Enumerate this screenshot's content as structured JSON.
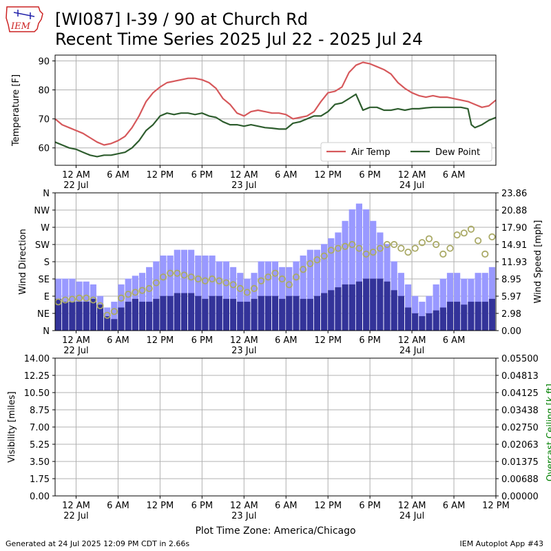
{
  "page": {
    "title_line1": "[WI087] I-39 / 90 at Church Rd",
    "title_line2": "Recent Time Series 2025 Jul 22 - 2025 Jul 24",
    "logo_text": "IEM",
    "timezone_label": "Plot Time Zone: America/Chicago",
    "footer_left": "Generated at 24 Jul 2025 12:09 PM CDT in 2.66s",
    "footer_right": "IEM Autoplot App #43"
  },
  "colors": {
    "air_temp": "#d6585b",
    "dew_point": "#2e5d2e",
    "wind_gust": "#9999ff",
    "wind_speed": "#333399",
    "wind_dir": "#aaaa66",
    "ceiling_axis": "#008000",
    "grid": "#b0b0b0"
  },
  "chart_data": [
    {
      "type": "line",
      "panel": "temperature",
      "ylabel": "Temperature [F]",
      "ylim": [
        54,
        92
      ],
      "yticks": [
        60,
        70,
        80,
        90
      ],
      "xrange": [
        "2025-07-21 21:00",
        "2025-07-24 12:00"
      ],
      "x_tick_labels": [
        "12 AM",
        "6 AM",
        "12 PM",
        "6 PM",
        "12 AM",
        "6 AM",
        "12 PM",
        "6 PM",
        "12 AM",
        "6 AM"
      ],
      "date_labels": [
        "22 Jul",
        "23 Jul",
        "24 Jul"
      ],
      "grid": true,
      "legend_position": "lower right",
      "series": [
        {
          "name": "Air Temp",
          "points": [
            [
              "2025-07-21 21:00",
              70
            ],
            [
              "2025-07-21 22:00",
              68
            ],
            [
              "2025-07-21 23:00",
              67
            ],
            [
              "2025-07-22 00:00",
              66
            ],
            [
              "2025-07-22 01:00",
              65
            ],
            [
              "2025-07-22 02:00",
              63.5
            ],
            [
              "2025-07-22 03:00",
              62
            ],
            [
              "2025-07-22 04:00",
              61
            ],
            [
              "2025-07-22 05:00",
              61.5
            ],
            [
              "2025-07-22 06:00",
              62.5
            ],
            [
              "2025-07-22 07:00",
              64
            ],
            [
              "2025-07-22 08:00",
              67
            ],
            [
              "2025-07-22 09:00",
              71
            ],
            [
              "2025-07-22 10:00",
              76
            ],
            [
              "2025-07-22 11:00",
              79
            ],
            [
              "2025-07-22 12:00",
              81
            ],
            [
              "2025-07-22 13:00",
              82.5
            ],
            [
              "2025-07-22 14:00",
              83
            ],
            [
              "2025-07-22 15:00",
              83.5
            ],
            [
              "2025-07-22 16:00",
              84
            ],
            [
              "2025-07-22 17:00",
              84
            ],
            [
              "2025-07-22 18:00",
              83.5
            ],
            [
              "2025-07-22 19:00",
              82.5
            ],
            [
              "2025-07-22 20:00",
              80.5
            ],
            [
              "2025-07-22 21:00",
              77
            ],
            [
              "2025-07-22 22:00",
              75
            ],
            [
              "2025-07-22 23:00",
              72
            ],
            [
              "2025-07-23 00:00",
              71
            ],
            [
              "2025-07-23 01:00",
              72.5
            ],
            [
              "2025-07-23 02:00",
              73
            ],
            [
              "2025-07-23 03:00",
              72.5
            ],
            [
              "2025-07-23 04:00",
              72
            ],
            [
              "2025-07-23 05:00",
              72
            ],
            [
              "2025-07-23 06:00",
              71.5
            ],
            [
              "2025-07-23 07:00",
              70
            ],
            [
              "2025-07-23 08:00",
              70.5
            ],
            [
              "2025-07-23 09:00",
              71
            ],
            [
              "2025-07-23 10:00",
              72.5
            ],
            [
              "2025-07-23 11:00",
              76
            ],
            [
              "2025-07-23 12:00",
              79
            ],
            [
              "2025-07-23 13:00",
              79.5
            ],
            [
              "2025-07-23 14:00",
              81
            ],
            [
              "2025-07-23 15:00",
              86
            ],
            [
              "2025-07-23 16:00",
              88.5
            ],
            [
              "2025-07-23 17:00",
              89.5
            ],
            [
              "2025-07-23 18:00",
              89
            ],
            [
              "2025-07-23 19:00",
              88
            ],
            [
              "2025-07-23 20:00",
              87
            ],
            [
              "2025-07-23 21:00",
              85.5
            ],
            [
              "2025-07-23 22:00",
              82.5
            ],
            [
              "2025-07-23 23:00",
              80.5
            ],
            [
              "2025-07-24 00:00",
              79
            ],
            [
              "2025-07-24 01:00",
              78
            ],
            [
              "2025-07-24 02:00",
              77.5
            ],
            [
              "2025-07-24 03:00",
              78
            ],
            [
              "2025-07-24 04:00",
              77.5
            ],
            [
              "2025-07-24 05:00",
              77.5
            ],
            [
              "2025-07-24 06:00",
              77
            ],
            [
              "2025-07-24 07:00",
              76.5
            ],
            [
              "2025-07-24 08:00",
              76
            ],
            [
              "2025-07-24 09:00",
              75
            ],
            [
              "2025-07-24 10:00",
              74
            ],
            [
              "2025-07-24 11:00",
              74.5
            ],
            [
              "2025-07-24 12:00",
              76.5
            ]
          ]
        },
        {
          "name": "Dew Point",
          "points": [
            [
              "2025-07-21 21:00",
              62
            ],
            [
              "2025-07-21 22:00",
              61
            ],
            [
              "2025-07-21 23:00",
              60
            ],
            [
              "2025-07-22 00:00",
              59.5
            ],
            [
              "2025-07-22 01:00",
              58.5
            ],
            [
              "2025-07-22 02:00",
              57.5
            ],
            [
              "2025-07-22 03:00",
              57
            ],
            [
              "2025-07-22 04:00",
              57.5
            ],
            [
              "2025-07-22 05:00",
              57.5
            ],
            [
              "2025-07-22 06:00",
              58
            ],
            [
              "2025-07-22 07:00",
              58.5
            ],
            [
              "2025-07-22 08:00",
              60
            ],
            [
              "2025-07-22 09:00",
              62.5
            ],
            [
              "2025-07-22 10:00",
              66
            ],
            [
              "2025-07-22 11:00",
              68
            ],
            [
              "2025-07-22 12:00",
              71
            ],
            [
              "2025-07-22 13:00",
              72
            ],
            [
              "2025-07-22 14:00",
              71.5
            ],
            [
              "2025-07-22 15:00",
              72
            ],
            [
              "2025-07-22 16:00",
              72
            ],
            [
              "2025-07-22 17:00",
              71.5
            ],
            [
              "2025-07-22 18:00",
              72
            ],
            [
              "2025-07-22 19:00",
              71
            ],
            [
              "2025-07-22 20:00",
              70.5
            ],
            [
              "2025-07-22 21:00",
              69
            ],
            [
              "2025-07-22 22:00",
              68
            ],
            [
              "2025-07-22 23:00",
              68
            ],
            [
              "2025-07-23 00:00",
              67.5
            ],
            [
              "2025-07-23 01:00",
              68
            ],
            [
              "2025-07-23 02:00",
              67.5
            ],
            [
              "2025-07-23 03:00",
              67
            ],
            [
              "2025-07-23 04:00",
              66.8
            ],
            [
              "2025-07-23 05:00",
              66.5
            ],
            [
              "2025-07-23 06:00",
              66.5
            ],
            [
              "2025-07-23 07:00",
              68.5
            ],
            [
              "2025-07-23 08:00",
              69
            ],
            [
              "2025-07-23 09:00",
              70
            ],
            [
              "2025-07-23 10:00",
              71
            ],
            [
              "2025-07-23 11:00",
              71
            ],
            [
              "2025-07-23 12:00",
              72.5
            ],
            [
              "2025-07-23 13:00",
              75
            ],
            [
              "2025-07-23 14:00",
              75.5
            ],
            [
              "2025-07-23 15:00",
              77
            ],
            [
              "2025-07-23 16:00",
              78.5
            ],
            [
              "2025-07-23 17:00",
              73
            ],
            [
              "2025-07-23 18:00",
              74
            ],
            [
              "2025-07-23 19:00",
              74
            ],
            [
              "2025-07-23 20:00",
              73
            ],
            [
              "2025-07-23 21:00",
              73
            ],
            [
              "2025-07-23 22:00",
              73.5
            ],
            [
              "2025-07-23 23:00",
              73
            ],
            [
              "2025-07-24 00:00",
              73.5
            ],
            [
              "2025-07-24 01:00",
              73.5
            ],
            [
              "2025-07-24 02:00",
              73.8
            ],
            [
              "2025-07-24 03:00",
              74
            ],
            [
              "2025-07-24 04:00",
              74
            ],
            [
              "2025-07-24 05:00",
              74
            ],
            [
              "2025-07-24 06:00",
              74
            ],
            [
              "2025-07-24 07:00",
              74
            ],
            [
              "2025-07-24 08:00",
              73.5
            ],
            [
              "2025-07-24 08:30",
              68
            ],
            [
              "2025-07-24 09:00",
              67
            ],
            [
              "2025-07-24 10:00",
              68
            ],
            [
              "2025-07-24 11:00",
              69.5
            ],
            [
              "2025-07-24 12:00",
              70.5
            ]
          ]
        }
      ]
    },
    {
      "type": "bar",
      "panel": "wind",
      "ylabel": "Wind Direction",
      "ylabel_right": "Wind Speed [mph]",
      "dir_ticks": [
        "N",
        "NE",
        "E",
        "SE",
        "S",
        "SW",
        "W",
        "NW",
        "N"
      ],
      "speed_ticks": [
        "0.00",
        "2.98",
        "5.97",
        "8.95",
        "11.93",
        "14.91",
        "17.90",
        "20.88",
        "23.86"
      ],
      "speed_ylim": [
        0,
        23.86
      ],
      "dir_ylim": [
        0,
        360
      ],
      "x_tick_labels": [
        "12 AM",
        "6 AM",
        "12 PM",
        "6 PM",
        "12 AM",
        "6 AM",
        "12 PM",
        "6 PM",
        "12 AM",
        "6 AM"
      ],
      "date_labels": [
        "22 Jul",
        "23 Jul",
        "24 Jul"
      ],
      "grid": true,
      "hours": [
        "2025-07-21 21:00",
        "2025-07-21 22:00",
        "2025-07-21 23:00",
        "2025-07-22 00:00",
        "2025-07-22 01:00",
        "2025-07-22 02:00",
        "2025-07-22 03:00",
        "2025-07-22 04:00",
        "2025-07-22 05:00",
        "2025-07-22 06:00",
        "2025-07-22 07:00",
        "2025-07-22 08:00",
        "2025-07-22 09:00",
        "2025-07-22 10:00",
        "2025-07-22 11:00",
        "2025-07-22 12:00",
        "2025-07-22 13:00",
        "2025-07-22 14:00",
        "2025-07-22 15:00",
        "2025-07-22 16:00",
        "2025-07-22 17:00",
        "2025-07-22 18:00",
        "2025-07-22 19:00",
        "2025-07-22 20:00",
        "2025-07-22 21:00",
        "2025-07-22 22:00",
        "2025-07-22 23:00",
        "2025-07-23 00:00",
        "2025-07-23 01:00",
        "2025-07-23 02:00",
        "2025-07-23 03:00",
        "2025-07-23 04:00",
        "2025-07-23 05:00",
        "2025-07-23 06:00",
        "2025-07-23 07:00",
        "2025-07-23 08:00",
        "2025-07-23 09:00",
        "2025-07-23 10:00",
        "2025-07-23 11:00",
        "2025-07-23 12:00",
        "2025-07-23 13:00",
        "2025-07-23 14:00",
        "2025-07-23 15:00",
        "2025-07-23 16:00",
        "2025-07-23 17:00",
        "2025-07-23 18:00",
        "2025-07-23 19:00",
        "2025-07-23 20:00",
        "2025-07-23 21:00",
        "2025-07-23 22:00",
        "2025-07-23 23:00",
        "2025-07-24 00:00",
        "2025-07-24 01:00",
        "2025-07-24 02:00",
        "2025-07-24 03:00",
        "2025-07-24 04:00",
        "2025-07-24 05:00",
        "2025-07-24 06:00",
        "2025-07-24 07:00",
        "2025-07-24 08:00",
        "2025-07-24 09:00",
        "2025-07-24 10:00",
        "2025-07-24 11:00"
      ],
      "wind_speed_mph": [
        5.5,
        5,
        5,
        5,
        5,
        5.5,
        4.5,
        2.5,
        2,
        4,
        5,
        5.5,
        5,
        5,
        5.5,
        6,
        6,
        6.5,
        6.5,
        6.5,
        6,
        5.5,
        6,
        6,
        5.5,
        5.5,
        5,
        5,
        5.5,
        6,
        6,
        6,
        5.5,
        6,
        6,
        5.5,
        5.5,
        6,
        6.5,
        7,
        7.5,
        8,
        8,
        8.5,
        9,
        9,
        9,
        8.5,
        7,
        6,
        4,
        3,
        2.5,
        3,
        3.5,
        4,
        5,
        5,
        4.5,
        5,
        5,
        5,
        5.5
      ],
      "wind_gust_mph": [
        9,
        9,
        9,
        8.5,
        8.5,
        8,
        6,
        4,
        5,
        8,
        9,
        9.5,
        10,
        11,
        12,
        13,
        13,
        14,
        14,
        14,
        13,
        13,
        13,
        12,
        12,
        11,
        10,
        9,
        10,
        12,
        12,
        12,
        11,
        11,
        12,
        13,
        14,
        14,
        15,
        16,
        17,
        19,
        21,
        22,
        21,
        19,
        17,
        15,
        12,
        10,
        8,
        6,
        5,
        6,
        8,
        9,
        10,
        10,
        9,
        9,
        10,
        10,
        11
      ],
      "wind_dir_deg": [
        75,
        80,
        82,
        85,
        85,
        80,
        65,
        40,
        50,
        85,
        95,
        100,
        105,
        110,
        125,
        140,
        150,
        150,
        145,
        140,
        135,
        130,
        135,
        130,
        125,
        120,
        110,
        100,
        110,
        130,
        140,
        150,
        135,
        120,
        140,
        160,
        175,
        185,
        195,
        210,
        215,
        220,
        225,
        215,
        200,
        205,
        215,
        225,
        225,
        215,
        205,
        215,
        230,
        240,
        225,
        200,
        215,
        250,
        255,
        265,
        235,
        200,
        245
      ]
    },
    {
      "type": "line",
      "panel": "visibility",
      "ylabel": "Visibility [miles]",
      "ylabel_right": "Overcast Ceiling [k ft]",
      "vis_ticks": [
        "0.00",
        "1.75",
        "3.50",
        "5.25",
        "7.00",
        "8.75",
        "10.50",
        "12.25",
        "14.00"
      ],
      "ceiling_ticks": [
        "0.00000",
        "0.00688",
        "0.01375",
        "0.02063",
        "0.02750",
        "0.03438",
        "0.04125",
        "0.04813",
        "0.05500"
      ],
      "x_tick_labels": [
        "12 AM",
        "6 AM",
        "12 PM",
        "6 PM",
        "12 AM",
        "6 AM",
        "12 PM",
        "6 PM",
        "12 AM",
        "6 AM",
        "12 PM"
      ],
      "date_labels": [
        "22 Jul",
        "23 Jul",
        "24 Jul"
      ],
      "grid": true,
      "series": []
    }
  ]
}
